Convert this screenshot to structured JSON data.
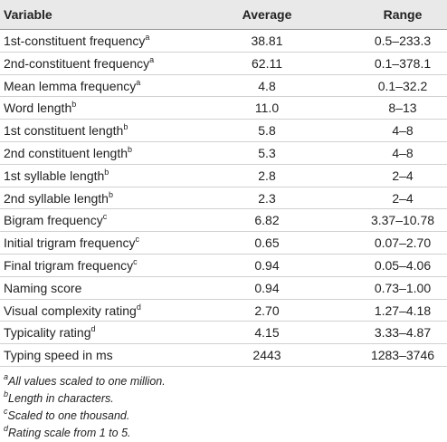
{
  "table": {
    "header": [
      "Variable",
      "Average",
      "Range"
    ],
    "rows": [
      {
        "variable": "1st-constituent frequency",
        "note": "a",
        "average": "38.81",
        "range": "0.5–233.3"
      },
      {
        "variable": "2nd-constituent frequency",
        "note": "a",
        "average": "62.11",
        "range": "0.1–378.1"
      },
      {
        "variable": "Mean lemma frequency",
        "note": "a",
        "average": "4.8",
        "range": "0.1–32.2"
      },
      {
        "variable": "Word length",
        "note": "b",
        "average": "11.0",
        "range": "8–13"
      },
      {
        "variable": "1st constituent length",
        "note": "b",
        "average": "5.8",
        "range": "4–8"
      },
      {
        "variable": "2nd constituent length",
        "note": "b",
        "average": "5.3",
        "range": "4–8"
      },
      {
        "variable": "1st syllable length",
        "note": "b",
        "average": "2.8",
        "range": "2–4"
      },
      {
        "variable": "2nd syllable length",
        "note": "b",
        "average": "2.3",
        "range": "2–4"
      },
      {
        "variable": "Bigram frequency",
        "note": "c",
        "average": "6.82",
        "range": "3.37–10.78"
      },
      {
        "variable": "Initial trigram frequency",
        "note": "c",
        "average": "0.65",
        "range": "0.07–2.70"
      },
      {
        "variable": "Final trigram frequency",
        "note": "c",
        "average": "0.94",
        "range": "0.05–4.06"
      },
      {
        "variable": "Naming score",
        "average": "0.94",
        "range": "0.73–1.00"
      },
      {
        "variable": "Visual complexity rating",
        "note": "d",
        "average": "2.70",
        "range": "1.27–4.18"
      },
      {
        "variable": "Typicality rating",
        "note": "d",
        "average": "4.15",
        "range": "3.33–4.87"
      },
      {
        "variable": "Typing speed in ms",
        "average": "2443",
        "range": "1283–3746"
      }
    ],
    "footnotes": [
      {
        "mark": "a",
        "text": "All values scaled to one million."
      },
      {
        "mark": "b",
        "text": "Length in characters."
      },
      {
        "mark": "c",
        "text": "Scaled to one thousand."
      },
      {
        "mark": "d",
        "text": "Rating scale from 1 to 5."
      }
    ]
  }
}
